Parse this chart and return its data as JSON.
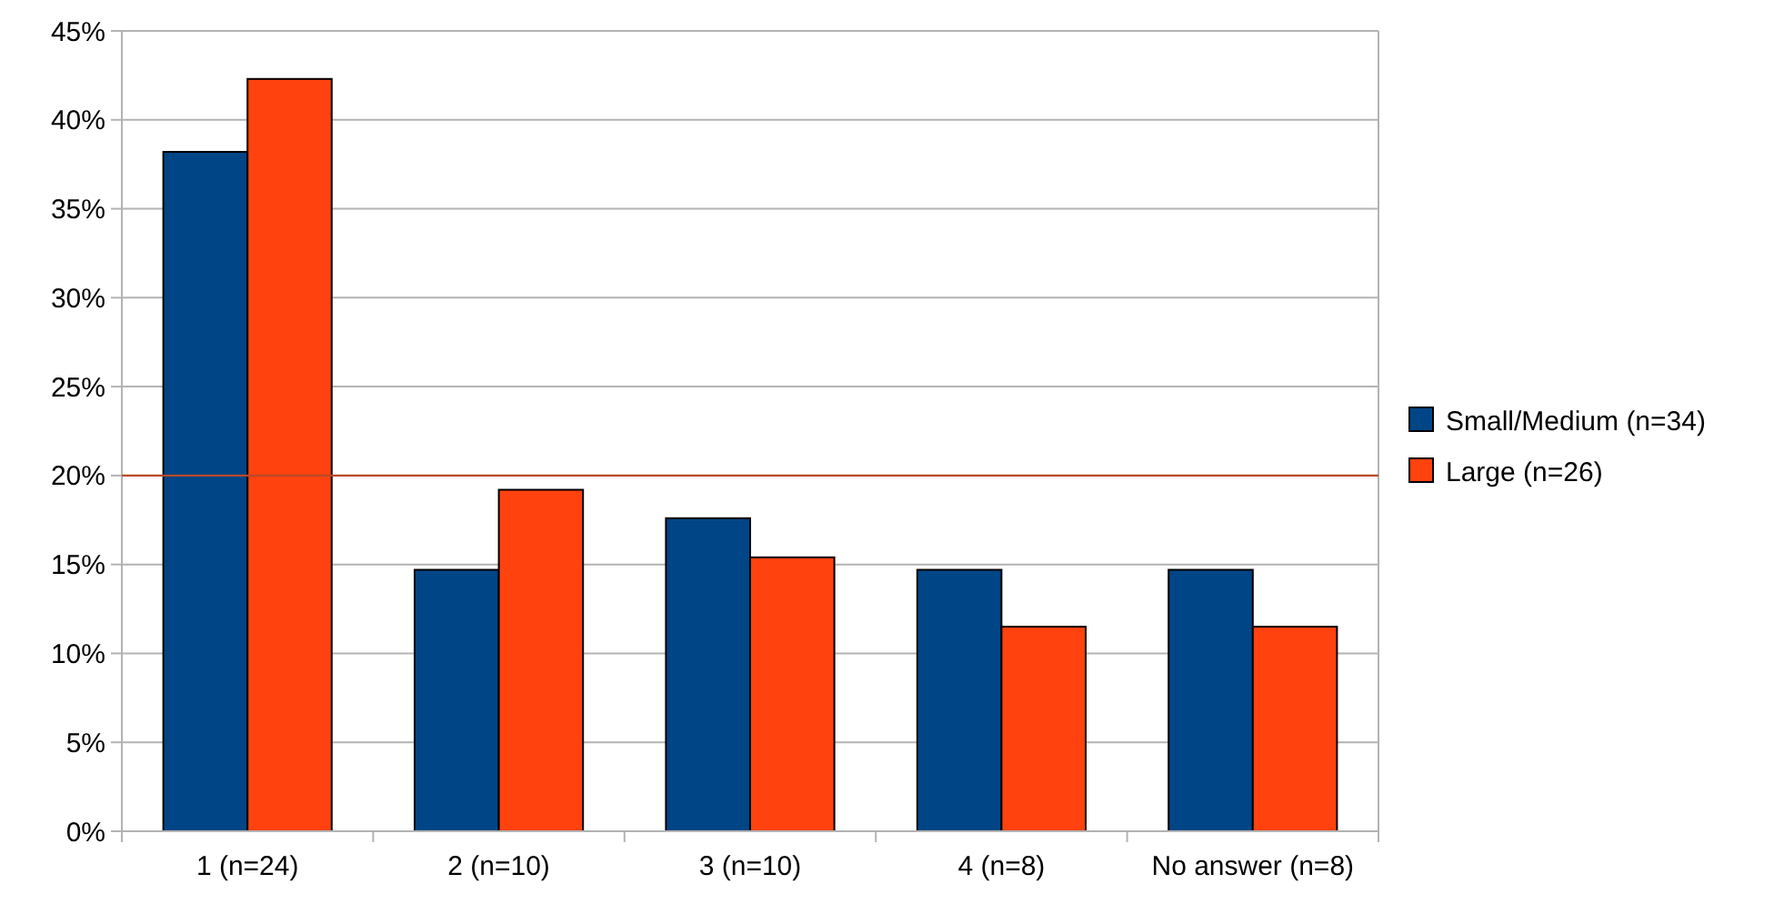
{
  "chart_data": {
    "type": "bar",
    "categories": [
      "1 (n=24)",
      "2 (n=10)",
      "3 (n=10)",
      "4 (n=8)",
      "No answer (n=8)"
    ],
    "series": [
      {
        "name": "Small/Medium (n=34)",
        "color": "#004586",
        "values": [
          38.2,
          14.7,
          17.6,
          14.7,
          14.7
        ]
      },
      {
        "name": "Large (n=26)",
        "color": "#ff420e",
        "values": [
          42.3,
          19.2,
          15.4,
          11.5,
          11.5
        ]
      }
    ],
    "ylim": [
      0,
      45
    ],
    "yticks": [
      {
        "value": 0,
        "label": "0%"
      },
      {
        "value": 5,
        "label": "5%"
      },
      {
        "value": 10,
        "label": "10%"
      },
      {
        "value": 15,
        "label": "15%"
      },
      {
        "value": 20,
        "label": "20%"
      },
      {
        "value": 25,
        "label": "25%"
      },
      {
        "value": 30,
        "label": "30%"
      },
      {
        "value": 35,
        "label": "35%"
      },
      {
        "value": 40,
        "label": "40%"
      },
      {
        "value": 45,
        "label": "45%"
      }
    ],
    "grid": "y",
    "legend": "right",
    "ref_lines": [
      {
        "axis": "y",
        "value": 20,
        "color": "#b84a2a"
      }
    ]
  }
}
